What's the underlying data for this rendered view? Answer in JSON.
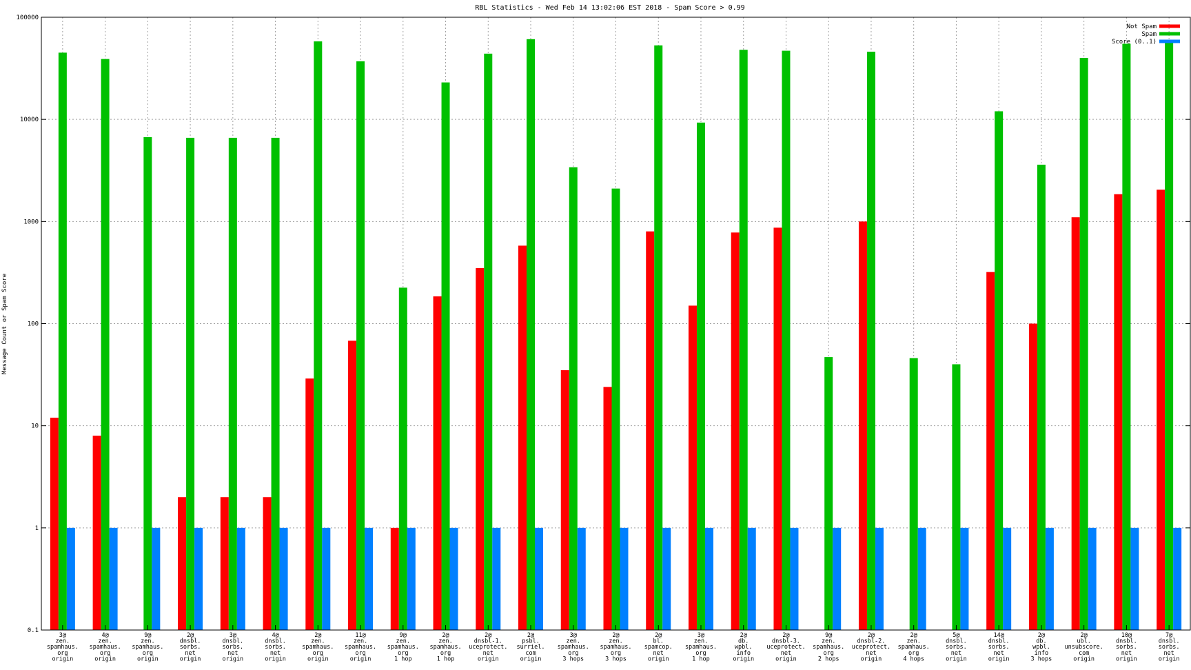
{
  "chart_data": {
    "type": "bar",
    "title": "RBL Statistics - Wed Feb 14 13:02:06 EST 2018 - Spam Score > 0.99",
    "ylabel": "Message Count or Spam Score",
    "xlabel": "",
    "yscale": "log",
    "ylim": [
      0.1,
      100000
    ],
    "yticks": [
      "0.1",
      "1",
      "10",
      "100",
      "1000",
      "10000",
      "100000"
    ],
    "grid": "on (dotted)",
    "legend_position": "top-right",
    "categories": [
      [
        "3@",
        "zen.",
        "spamhaus.",
        "org",
        "origin"
      ],
      [
        "4@",
        "zen.",
        "spamhaus.",
        "org",
        "origin"
      ],
      [
        "9@",
        "zen.",
        "spamhaus.",
        "org",
        "origin"
      ],
      [
        "2@",
        "dnsbl.",
        "sorbs.",
        "net",
        "origin"
      ],
      [
        "3@",
        "dnsbl.",
        "sorbs.",
        "net",
        "origin"
      ],
      [
        "4@",
        "dnsbl.",
        "sorbs.",
        "net",
        "origin"
      ],
      [
        "2@",
        "zen.",
        "spamhaus.",
        "org",
        "origin"
      ],
      [
        "11@",
        "zen.",
        "spamhaus.",
        "org",
        "origin"
      ],
      [
        "9@",
        "zen.",
        "spamhaus.",
        "org",
        "1 hop"
      ],
      [
        "2@",
        "zen.",
        "spamhaus.",
        "org",
        "1 hop"
      ],
      [
        "2@",
        "dnsbl-1.",
        "uceprotect.",
        "net",
        "origin"
      ],
      [
        "2@",
        "psbl.",
        "surriel.",
        "com",
        "origin"
      ],
      [
        "3@",
        "zen.",
        "spamhaus.",
        "org",
        "3 hops"
      ],
      [
        "2@",
        "zen.",
        "spamhaus.",
        "org",
        "3 hops"
      ],
      [
        "2@",
        "bl.",
        "spamcop.",
        "net",
        "origin"
      ],
      [
        "3@",
        "zen.",
        "spamhaus.",
        "org",
        "1 hop"
      ],
      [
        "2@",
        "db.",
        "wpbl.",
        "info",
        "origin"
      ],
      [
        "2@",
        "dnsbl-3.",
        "uceprotect.",
        "net",
        "origin"
      ],
      [
        "9@",
        "zen.",
        "spamhaus.",
        "org",
        "2 hops"
      ],
      [
        "2@",
        "dnsbl-2.",
        "uceprotect.",
        "net",
        "origin"
      ],
      [
        "2@",
        "zen.",
        "spamhaus.",
        "org",
        "4 hops"
      ],
      [
        "5@",
        "dnsbl.",
        "sorbs.",
        "net",
        "origin"
      ],
      [
        "14@",
        "dnsbl.",
        "sorbs.",
        "net",
        "origin"
      ],
      [
        "2@",
        "db.",
        "wpbl.",
        "info",
        "3 hops"
      ],
      [
        "2@",
        "ubl.",
        "unsubscore.",
        "com",
        "origin"
      ],
      [
        "10@",
        "dnsbl.",
        "sorbs.",
        "net",
        "origin"
      ],
      [
        "7@",
        "dnsbl.",
        "sorbs.",
        "net",
        "origin"
      ]
    ],
    "series": [
      {
        "name": "Not Spam",
        "color": "#ff0000",
        "values": [
          12,
          8,
          null,
          2,
          2,
          2,
          29,
          68,
          1,
          185,
          350,
          580,
          35,
          24,
          800,
          150,
          780,
          870,
          null,
          1000,
          null,
          null,
          320,
          100,
          1100,
          1850,
          2050
        ]
      },
      {
        "name": "Spam",
        "color": "#00c000",
        "values": [
          45000,
          39000,
          6700,
          6600,
          6600,
          6600,
          58000,
          37000,
          225,
          23000,
          44000,
          61000,
          3400,
          2100,
          53000,
          9300,
          48000,
          47000,
          47,
          46000,
          46,
          40,
          12000,
          3600,
          40000,
          55000,
          58000
        ]
      },
      {
        "name": "Score (0..1)",
        "color": "#0080ff",
        "values": [
          1,
          1,
          1,
          1,
          1,
          1,
          1,
          1,
          1,
          1,
          1,
          1,
          1,
          1,
          1,
          1,
          1,
          1,
          1,
          1,
          1,
          1,
          1,
          1,
          1,
          1,
          1
        ]
      }
    ]
  }
}
